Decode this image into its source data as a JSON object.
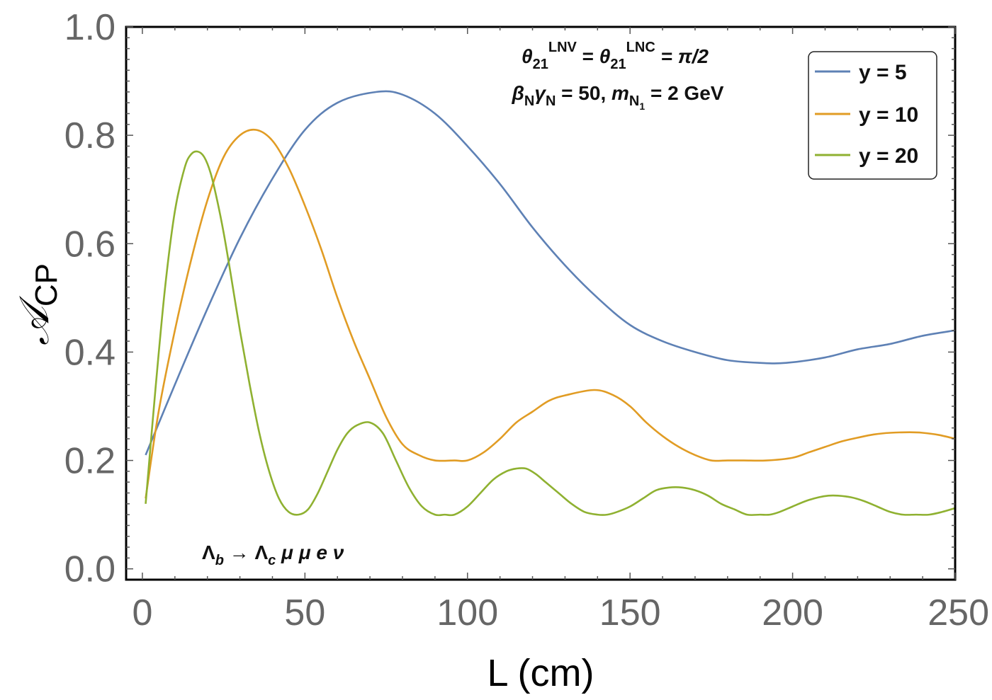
{
  "chart_data": {
    "type": "line",
    "title": "",
    "xlabel": "L (cm)",
    "ylabel_main": "𝒜",
    "ylabel_sub": "CP",
    "xlim": [
      -5,
      250
    ],
    "ylim": [
      -0.02,
      1.0
    ],
    "xticks": [
      0,
      50,
      100,
      150,
      200,
      250
    ],
    "xtick_labels": [
      "0",
      "50",
      "100",
      "150",
      "200",
      "250"
    ],
    "yticks": [
      0.0,
      0.2,
      0.4,
      0.6,
      0.8,
      1.0
    ],
    "ytick_labels": [
      "0.0",
      "0.2",
      "0.4",
      "0.6",
      "0.8",
      "1.0"
    ],
    "grid": false,
    "legend_position": "top-right",
    "annotations": {
      "line1": {
        "theta": "θ",
        "sub": "21",
        "sup1": "LNV",
        "eq": " = ",
        "theta2": "θ",
        "sub2": "21",
        "sup2": "LNC",
        "rhs": " = π/2"
      },
      "line2": {
        "beta": "β",
        "beta_sub": "N",
        "gamma": "γ",
        "gamma_sub": "N",
        "mid": " = 50, ",
        "m": "m",
        "m_sub": "N",
        "m_subsub": "1",
        "rhs": " = 2 GeV"
      },
      "process": {
        "lam_b": "Λ",
        "lam_b_sub": "b",
        "arrow": " → ",
        "lam_c": "Λ",
        "lam_c_sub": "c",
        "rest": " μ μ e ν"
      }
    },
    "series": [
      {
        "name": "y = 5",
        "color": "#5e81b5",
        "x": [
          1,
          10,
          20,
          30,
          40,
          50,
          60,
          72,
          80,
          90,
          100,
          110,
          120,
          130,
          140,
          150,
          160,
          170,
          180,
          190,
          198,
          210,
          220,
          230,
          240,
          250
        ],
        "y": [
          0.21,
          0.34,
          0.48,
          0.61,
          0.72,
          0.81,
          0.86,
          0.88,
          0.875,
          0.84,
          0.78,
          0.71,
          0.63,
          0.56,
          0.5,
          0.45,
          0.42,
          0.4,
          0.385,
          0.38,
          0.38,
          0.39,
          0.405,
          0.415,
          0.43,
          0.44
        ]
      },
      {
        "name": "y = 10",
        "color": "#e19c24",
        "x": [
          1,
          5,
          10,
          15,
          20,
          25,
          30,
          35,
          40,
          45,
          50,
          55,
          60,
          65,
          70,
          75,
          80,
          85,
          90,
          96,
          100,
          105,
          110,
          115,
          120,
          125,
          130,
          139,
          145,
          150,
          155,
          160,
          165,
          170,
          175,
          180,
          185,
          192,
          200,
          205,
          210,
          215,
          220,
          225,
          230,
          236,
          240,
          245,
          250
        ],
        "y": [
          0.13,
          0.29,
          0.44,
          0.57,
          0.68,
          0.76,
          0.8,
          0.81,
          0.79,
          0.74,
          0.67,
          0.59,
          0.5,
          0.42,
          0.35,
          0.28,
          0.23,
          0.21,
          0.2,
          0.2,
          0.2,
          0.215,
          0.24,
          0.27,
          0.29,
          0.31,
          0.32,
          0.33,
          0.32,
          0.3,
          0.27,
          0.245,
          0.225,
          0.21,
          0.2,
          0.2,
          0.2,
          0.2,
          0.205,
          0.215,
          0.225,
          0.235,
          0.242,
          0.248,
          0.251,
          0.252,
          0.251,
          0.247,
          0.24
        ]
      },
      {
        "name": "y = 20",
        "color": "#8fb131",
        "x": [
          1,
          4,
          7,
          10,
          13,
          15,
          17,
          19,
          21,
          23,
          25,
          27,
          30,
          33,
          36,
          39,
          42,
          45,
          48,
          51,
          54,
          57,
          60,
          63,
          66,
          70,
          74,
          78,
          82,
          86,
          90,
          93,
          96,
          100,
          104,
          108,
          112,
          115,
          118,
          121,
          124,
          128,
          132,
          136,
          140,
          143,
          146,
          150,
          154,
          158,
          162,
          166,
          170,
          174,
          178,
          182,
          186,
          190,
          193,
          196,
          200,
          204,
          208,
          211,
          214,
          218,
          222,
          226,
          230,
          234,
          238,
          242,
          246,
          250
        ],
        "y": [
          0.12,
          0.33,
          0.52,
          0.66,
          0.74,
          0.765,
          0.77,
          0.76,
          0.73,
          0.68,
          0.62,
          0.55,
          0.44,
          0.34,
          0.25,
          0.18,
          0.13,
          0.105,
          0.1,
          0.11,
          0.14,
          0.18,
          0.22,
          0.25,
          0.265,
          0.27,
          0.25,
          0.2,
          0.15,
          0.115,
          0.1,
          0.1,
          0.1,
          0.115,
          0.14,
          0.165,
          0.18,
          0.185,
          0.185,
          0.175,
          0.16,
          0.14,
          0.12,
          0.105,
          0.1,
          0.1,
          0.105,
          0.115,
          0.13,
          0.145,
          0.15,
          0.15,
          0.145,
          0.135,
          0.12,
          0.11,
          0.1,
          0.1,
          0.1,
          0.105,
          0.115,
          0.125,
          0.132,
          0.135,
          0.135,
          0.132,
          0.125,
          0.115,
          0.105,
          0.1,
          0.1,
          0.1,
          0.105,
          0.112
        ]
      }
    ]
  }
}
